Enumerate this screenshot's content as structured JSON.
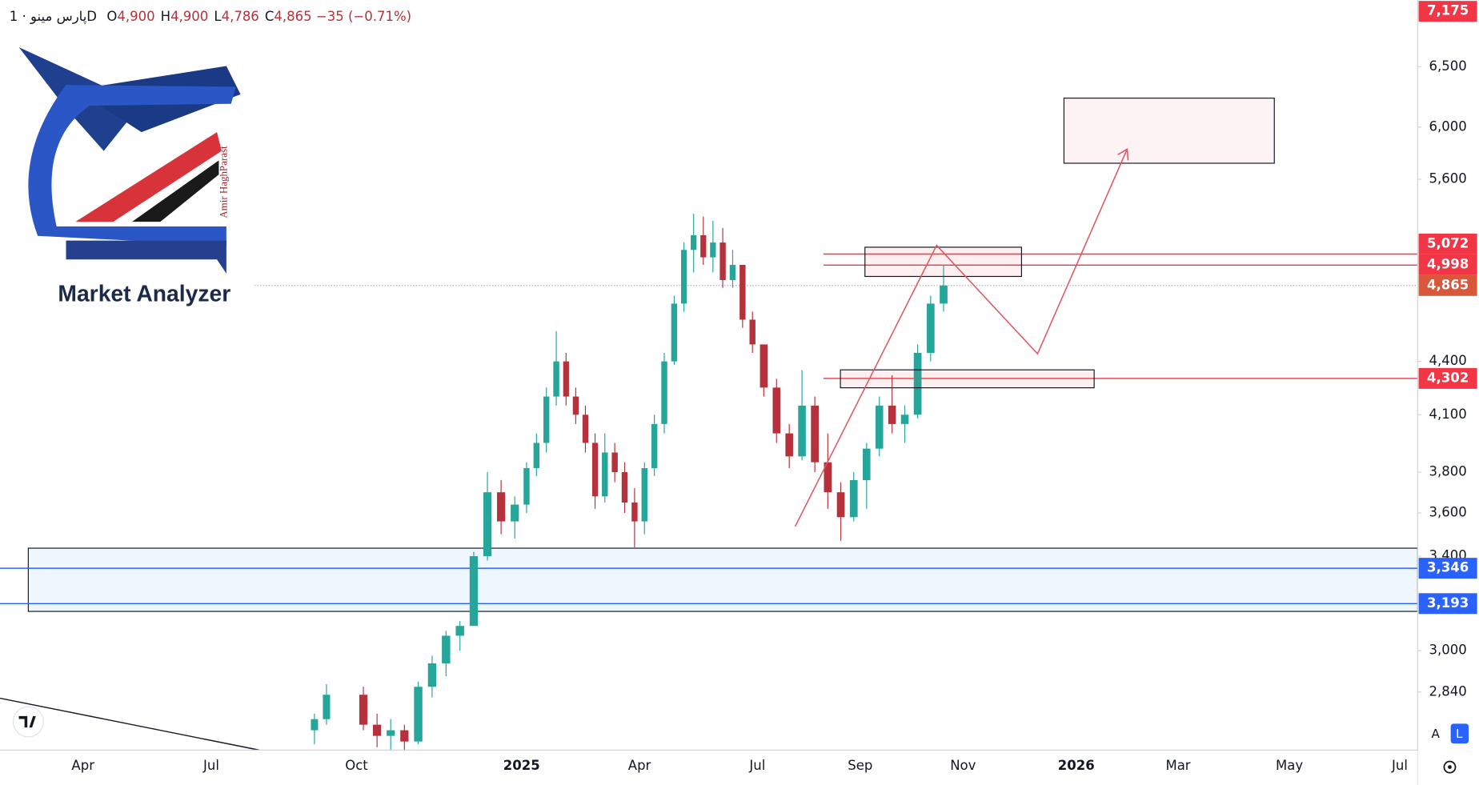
{
  "header": {
    "symbol": "پارس مینو",
    "separator": "·",
    "interval": "1D",
    "fields": [
      {
        "key": "O",
        "value": "4,900"
      },
      {
        "key": "H",
        "value": "4,900"
      },
      {
        "key": "L",
        "value": "4,786"
      },
      {
        "key": "C",
        "value": "4,865"
      }
    ],
    "change": "−35 (−0.71%)"
  },
  "logo": {
    "title": "Market Analyzer",
    "author": "Amir HaghParast"
  },
  "chart_data": {
    "type": "candlestick",
    "log_scale": true,
    "ylim": [
      2630,
      7100
    ],
    "yticks": [
      {
        "value": 6500,
        "label": "6,500"
      },
      {
        "value": 6000,
        "label": "6,000"
      },
      {
        "value": 5600,
        "label": "5,600"
      },
      {
        "value": 4400,
        "label": "4,400"
      },
      {
        "value": 4100,
        "label": "4,100"
      },
      {
        "value": 3800,
        "label": "3,800"
      },
      {
        "value": 3600,
        "label": "3,600"
      },
      {
        "value": 3400,
        "label": "3,400"
      },
      {
        "value": 3000,
        "label": "3,000"
      },
      {
        "value": 2840,
        "label": "2,840"
      }
    ],
    "up_color": "#26a69a",
    "down_color": "#b5323c",
    "months": [
      "Apr",
      null,
      null,
      "Jul",
      null,
      null,
      "Oct",
      null,
      null,
      "2025",
      null,
      null,
      "Apr",
      null,
      null,
      "Jul",
      null,
      "Sep",
      null,
      "Nov",
      null,
      "2026",
      null,
      "Mar",
      null,
      "May",
      null,
      "Jul"
    ],
    "candles": [
      null,
      null,
      null,
      null,
      null,
      [
        [
          2700,
          2760,
          2650,
          2740
        ],
        [
          2740,
          2870,
          2720,
          2830
        ]
      ],
      [
        [
          2830,
          2860,
          2700,
          2720
        ],
        [
          2720,
          2760,
          2640,
          2680
        ],
        [
          2680,
          2740,
          2620,
          2700
        ],
        [
          2700,
          2720,
          2630,
          2660
        ]
      ],
      [
        [
          2660,
          2880,
          2650,
          2860
        ],
        [
          2860,
          2980,
          2820,
          2950
        ],
        [
          2950,
          3080,
          2900,
          3060
        ],
        [
          3060,
          3120,
          3000,
          3100
        ]
      ],
      [
        [
          3100,
          3420,
          3180,
          3400
        ],
        [
          3400,
          3800,
          3380,
          3700
        ],
        [
          3700,
          3760,
          3500,
          3560
        ],
        [
          3560,
          3680,
          3480,
          3640
        ]
      ],
      [
        [
          3640,
          3850,
          3600,
          3820
        ],
        [
          3820,
          4000,
          3780,
          3950
        ],
        [
          3950,
          4250,
          3900,
          4200
        ],
        [
          4200,
          4580,
          4150,
          4400
        ]
      ],
      [
        [
          4400,
          4450,
          4150,
          4200
        ],
        [
          4200,
          4250,
          4050,
          4100
        ],
        [
          4100,
          4150,
          3900,
          3950
        ],
        [
          3950,
          4000,
          3620,
          3680
        ]
      ],
      [
        [
          3680,
          4000,
          3650,
          3900
        ],
        [
          3900,
          3950,
          3750,
          3800
        ],
        [
          3800,
          3850,
          3600,
          3650
        ],
        [
          3650,
          3720,
          3440,
          3560
        ]
      ],
      [
        [
          3560,
          3850,
          3500,
          3820
        ],
        [
          3820,
          4100,
          3780,
          4050
        ],
        [
          4050,
          4450,
          4000,
          4400
        ],
        [
          4400,
          4800,
          4380,
          4750
        ]
      ],
      [
        [
          4750,
          5150,
          4700,
          5100
        ],
        [
          5100,
          5350,
          4950,
          5200
        ],
        [
          5200,
          5330,
          5000,
          5050
        ],
        [
          5050,
          5300,
          4950,
          5150
        ]
      ],
      [
        [
          5150,
          5250,
          4850,
          4900
        ],
        [
          4900,
          5100,
          4850,
          5000
        ],
        [
          5000,
          5000,
          4600,
          4650
        ],
        [
          4650,
          4700,
          4450,
          4500
        ]
      ],
      [
        [
          4500,
          4500,
          4200,
          4250
        ],
        [
          4250,
          4300,
          3950,
          4000
        ],
        [
          4000,
          4050,
          3820,
          3880
        ],
        [
          3880,
          4350,
          3860,
          4150
        ]
      ],
      [
        [
          4150,
          4200,
          3800,
          3850
        ],
        [
          3850,
          4000,
          3620,
          3700
        ],
        [
          3700,
          3750,
          3470,
          3580
        ],
        [
          3580,
          3800,
          3560,
          3760
        ]
      ],
      [
        [
          3760,
          3950,
          3620,
          3920
        ],
        [
          3920,
          4200,
          3880,
          4150
        ],
        [
          4150,
          4320,
          4000,
          4050
        ],
        [
          4050,
          4150,
          3950,
          4100
        ]
      ],
      [
        [
          4100,
          4500,
          4080,
          4450
        ],
        [
          4450,
          4800,
          4400,
          4750
        ],
        [
          4750,
          5000,
          4700,
          4865
        ]
      ],
      null,
      null,
      null,
      null,
      null,
      null,
      null,
      null,
      null
    ],
    "top_label": {
      "value": 7175,
      "label": "7,175",
      "color": "#f23645"
    },
    "current_price": {
      "value": 4865,
      "label": "4,865",
      "color": "#d9583b"
    },
    "levels": [
      {
        "value": 5072,
        "label": "5,072",
        "color": "#f23645"
      },
      {
        "value": 4998,
        "label": "4,998",
        "color": "#f23645"
      },
      {
        "value": 4302,
        "label": "4,302",
        "color": "#f23645"
      },
      {
        "value": 3346,
        "label": "3,346",
        "color": "#2962ff"
      },
      {
        "value": 3193,
        "label": "3,193",
        "color": "#2962ff"
      }
    ]
  },
  "buttons": {
    "auto": "A",
    "log": "L"
  }
}
